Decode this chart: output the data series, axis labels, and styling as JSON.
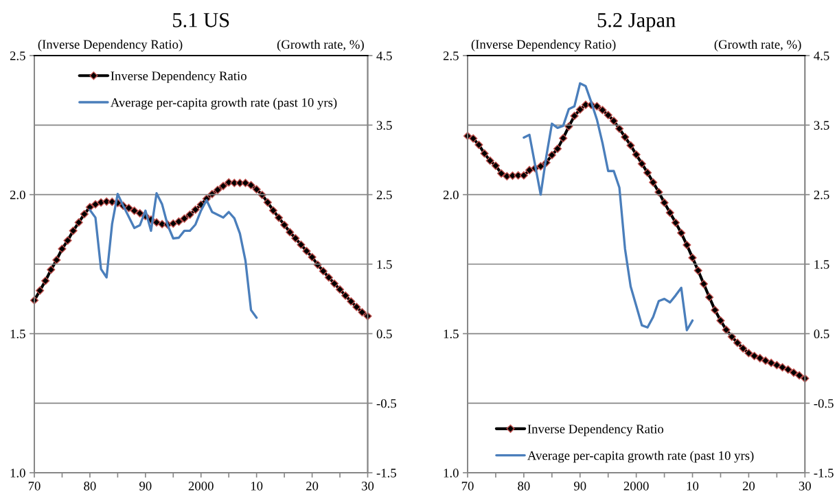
{
  "chart_data": [
    {
      "type": "line",
      "title": "5.1 US",
      "ylabel": "(Inverse Dependency Ratio)",
      "y2label": "(Growth rate, %)",
      "x": [
        1970,
        1971,
        1972,
        1973,
        1974,
        1975,
        1976,
        1977,
        1978,
        1979,
        1980,
        1981,
        1982,
        1983,
        1984,
        1985,
        1986,
        1987,
        1988,
        1989,
        1990,
        1991,
        1992,
        1993,
        1994,
        1995,
        1996,
        1997,
        1998,
        1999,
        2000,
        2001,
        2002,
        2003,
        2004,
        2005,
        2006,
        2007,
        2008,
        2009,
        2010,
        2011,
        2012,
        2013,
        2014,
        2015,
        2016,
        2017,
        2018,
        2019,
        2020,
        2021,
        2022,
        2023,
        2024,
        2025,
        2026,
        2027,
        2028,
        2029,
        2030
      ],
      "series": [
        {
          "name": "Inverse Dependency Ratio",
          "color": "#000000",
          "marker": "diamond",
          "values": [
            1.62,
            1.655,
            1.69,
            1.73,
            1.765,
            1.805,
            1.835,
            1.87,
            1.9,
            1.93,
            1.955,
            1.965,
            1.972,
            1.975,
            1.974,
            1.97,
            1.96,
            1.952,
            1.942,
            1.933,
            1.923,
            1.91,
            1.9,
            1.894,
            1.892,
            1.896,
            1.903,
            1.914,
            1.928,
            1.946,
            1.964,
            1.985,
            2.002,
            2.017,
            2.031,
            2.044,
            2.042,
            2.042,
            2.042,
            2.034,
            2.019,
            1.999,
            1.972,
            1.943,
            1.917,
            1.891,
            1.865,
            1.843,
            1.82,
            1.797,
            1.775,
            1.748,
            1.725,
            1.702,
            1.68,
            1.659,
            1.637,
            1.616,
            1.596,
            1.577,
            1.563
          ]
        },
        {
          "name": "Average per-capita growth rate (past 10 yrs)",
          "color": "#4a7ebb",
          "marker": "none",
          "axis": "y2",
          "x": [
            1980,
            1981,
            1982,
            1983,
            1984,
            1985,
            1986,
            1987,
            1988,
            1989,
            1990,
            1991,
            1992,
            1993,
            1994,
            1995,
            1996,
            1997,
            1998,
            1999,
            2000,
            2001,
            2002,
            2003,
            2004,
            2005,
            2006,
            2007,
            2008,
            2009,
            2010
          ],
          "values": [
            2.28,
            2.17,
            1.43,
            1.31,
            2.08,
            2.51,
            2.34,
            2.18,
            2.02,
            2.06,
            2.27,
            1.98,
            2.52,
            2.36,
            2.06,
            1.87,
            1.88,
            1.98,
            1.98,
            2.07,
            2.27,
            2.42,
            2.25,
            2.21,
            2.17,
            2.25,
            2.16,
            1.94,
            1.55,
            0.84,
            0.73
          ]
        }
      ],
      "xlim": [
        1970,
        2030
      ],
      "xticks": [
        {
          "value": 1970,
          "label": "70"
        },
        {
          "value": 1975,
          "label": null
        },
        {
          "value": 1980,
          "label": "80"
        },
        {
          "value": 1985,
          "label": null
        },
        {
          "value": 1990,
          "label": "90"
        },
        {
          "value": 1995,
          "label": null
        },
        {
          "value": 2000,
          "label": "2000"
        },
        {
          "value": 2005,
          "label": null
        },
        {
          "value": 2010,
          "label": "10"
        },
        {
          "value": 2015,
          "label": null
        },
        {
          "value": 2020,
          "label": "20"
        },
        {
          "value": 2025,
          "label": null
        },
        {
          "value": 2030,
          "label": "30"
        }
      ],
      "ylim": [
        1.0,
        2.5
      ],
      "yticks": [
        {
          "value": 1,
          "label": "1.0"
        },
        {
          "value": 1.5,
          "label": "1.5"
        },
        {
          "value": 2,
          "label": "2.0"
        },
        {
          "value": 2.5,
          "label": "2.5"
        }
      ],
      "y2lim": [
        -1.5,
        4.5
      ],
      "y2ticks": [
        -1.5,
        -0.5,
        0.5,
        1.5,
        2.5,
        3.5,
        4.5
      ],
      "grid": "y",
      "legend": "top left",
      "line_style": "solid"
    },
    {
      "type": "line",
      "title": "5.2 Japan",
      "ylabel": "(Inverse Dependency Ratio)",
      "y2label": "(Growth rate, %)",
      "x": [
        1970,
        1971,
        1972,
        1973,
        1974,
        1975,
        1976,
        1977,
        1978,
        1979,
        1980,
        1981,
        1982,
        1983,
        1984,
        1985,
        1986,
        1987,
        1988,
        1989,
        1990,
        1991,
        1992,
        1993,
        1994,
        1995,
        1996,
        1997,
        1998,
        1999,
        2000,
        2001,
        2002,
        2003,
        2004,
        2005,
        2006,
        2007,
        2008,
        2009,
        2010,
        2011,
        2012,
        2013,
        2014,
        2015,
        2016,
        2017,
        2018,
        2019,
        2020,
        2021,
        2022,
        2023,
        2024,
        2025,
        2026,
        2027,
        2028,
        2029,
        2030
      ],
      "series": [
        {
          "name": "Inverse Dependency Ratio",
          "color": "#000000",
          "marker": "diamond",
          "values": [
            2.211,
            2.202,
            2.179,
            2.148,
            2.122,
            2.104,
            2.076,
            2.066,
            2.068,
            2.069,
            2.069,
            2.088,
            2.095,
            2.102,
            2.115,
            2.142,
            2.165,
            2.203,
            2.245,
            2.283,
            2.306,
            2.323,
            2.323,
            2.318,
            2.304,
            2.286,
            2.265,
            2.237,
            2.207,
            2.177,
            2.144,
            2.111,
            2.079,
            2.044,
            2.009,
            1.971,
            1.935,
            1.899,
            1.862,
            1.819,
            1.773,
            1.727,
            1.679,
            1.631,
            1.585,
            1.547,
            1.514,
            1.489,
            1.467,
            1.447,
            1.43,
            1.42,
            1.412,
            1.403,
            1.395,
            1.387,
            1.379,
            1.371,
            1.36,
            1.35,
            1.339
          ]
        },
        {
          "name": "Average per-capita growth rate (past 10 yrs)",
          "color": "#4a7ebb",
          "marker": "none",
          "axis": "y2",
          "x": [
            1980,
            1981,
            1982,
            1983,
            1984,
            1985,
            1986,
            1987,
            1988,
            1989,
            1990,
            1991,
            1992,
            1993,
            1994,
            1995,
            1996,
            1997,
            1998,
            1999,
            2000,
            2001,
            2002,
            2003,
            2004,
            2005,
            2006,
            2007,
            2008,
            2009,
            2010
          ],
          "values": [
            3.32,
            3.36,
            2.93,
            2.5,
            3.05,
            3.52,
            3.46,
            3.49,
            3.73,
            3.77,
            4.1,
            4.06,
            3.83,
            3.58,
            3.24,
            2.84,
            2.84,
            2.6,
            1.72,
            1.18,
            0.9,
            0.62,
            0.59,
            0.74,
            0.97,
            1.0,
            0.95,
            1.05,
            1.16,
            0.55,
            0.69
          ]
        }
      ],
      "xlim": [
        1970,
        2030
      ],
      "xticks": [
        {
          "value": 1970,
          "label": "70"
        },
        {
          "value": 1975,
          "label": null
        },
        {
          "value": 1980,
          "label": "80"
        },
        {
          "value": 1985,
          "label": null
        },
        {
          "value": 1990,
          "label": "90"
        },
        {
          "value": 1995,
          "label": null
        },
        {
          "value": 2000,
          "label": "2000"
        },
        {
          "value": 2005,
          "label": null
        },
        {
          "value": 2010,
          "label": "10"
        },
        {
          "value": 2015,
          "label": null
        },
        {
          "value": 2020,
          "label": "20"
        },
        {
          "value": 2025,
          "label": null
        },
        {
          "value": 2030,
          "label": "30"
        }
      ],
      "ylim": [
        1.0,
        2.5
      ],
      "yticks": [
        {
          "value": 1,
          "label": "1.0"
        },
        {
          "value": 1.5,
          "label": "1.5"
        },
        {
          "value": 2,
          "label": "2.0"
        },
        {
          "value": 2.5,
          "label": "2.5"
        }
      ],
      "y2lim": [
        -1.5,
        4.5
      ],
      "y2ticks": [
        -1.5,
        -0.5,
        0.5,
        1.5,
        2.5,
        3.5,
        4.5
      ],
      "grid": "y",
      "legend": "bottom left",
      "line_style": "solid"
    }
  ]
}
